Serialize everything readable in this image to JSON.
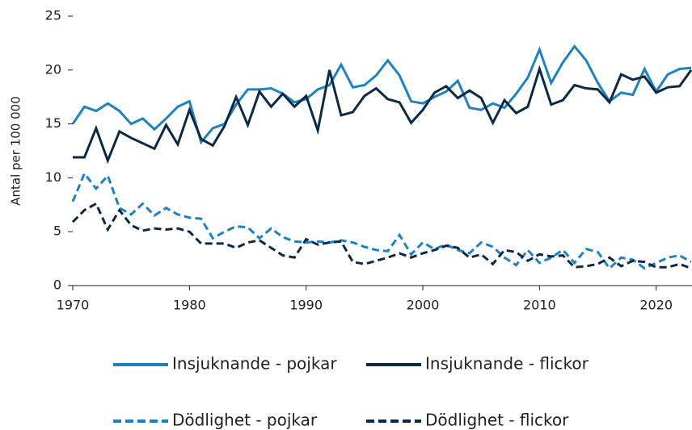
{
  "chart_data": {
    "type": "line",
    "y_label": "Antal per 100 000",
    "x": [
      1970,
      1971,
      1972,
      1973,
      1974,
      1975,
      1976,
      1977,
      1978,
      1979,
      1980,
      1981,
      1982,
      1983,
      1984,
      1985,
      1986,
      1987,
      1988,
      1989,
      1990,
      1991,
      1992,
      1993,
      1994,
      1995,
      1996,
      1997,
      1998,
      1999,
      2000,
      2001,
      2002,
      2003,
      2004,
      2005,
      2006,
      2007,
      2008,
      2009,
      2010,
      2011,
      2012,
      2013,
      2014,
      2015,
      2016,
      2017,
      2018,
      2019,
      2020,
      2021,
      2022,
      2023
    ],
    "xlim": [
      1970,
      2023
    ],
    "xticks": [
      1970,
      1980,
      1990,
      2000,
      2010,
      2020
    ],
    "ylim": [
      0,
      25
    ],
    "yticks": [
      0,
      5,
      10,
      15,
      20,
      25
    ],
    "series": [
      {
        "name": "Insjuknande - pojkar",
        "color": "#1f82c0",
        "style": "solid",
        "values": [
          15.0,
          16.6,
          16.2,
          16.9,
          16.2,
          15.0,
          15.5,
          14.5,
          15.5,
          16.6,
          17.1,
          13.3,
          14.6,
          15.0,
          16.8,
          18.2,
          18.2,
          18.3,
          17.8,
          17.0,
          17.3,
          18.2,
          18.6,
          20.5,
          18.4,
          18.6,
          19.5,
          20.9,
          19.5,
          17.1,
          16.9,
          17.5,
          18.0,
          19.0,
          16.5,
          16.3,
          16.9,
          16.5,
          17.8,
          19.3,
          21.9,
          18.8,
          20.7,
          22.2,
          20.9,
          18.8,
          17.1,
          17.9,
          17.7,
          20.1,
          18.0,
          19.6,
          20.1,
          20.2
        ]
      },
      {
        "name": "Insjuknande - flickor",
        "color": "#0c2a45",
        "style": "solid",
        "values": [
          11.9,
          11.9,
          14.6,
          11.6,
          14.3,
          13.7,
          13.2,
          12.7,
          14.9,
          13.1,
          16.3,
          13.6,
          13.0,
          14.8,
          17.5,
          14.9,
          18.0,
          16.6,
          17.8,
          16.6,
          17.6,
          14.4,
          20.0,
          15.8,
          16.1,
          17.6,
          18.3,
          17.3,
          17.0,
          15.1,
          16.3,
          17.9,
          18.5,
          17.4,
          18.1,
          17.4,
          15.1,
          17.2,
          16.0,
          16.6,
          20.1,
          16.8,
          17.2,
          18.6,
          18.3,
          18.2,
          17.0,
          19.6,
          19.1,
          19.4,
          17.9,
          18.4,
          18.5,
          20.0
        ]
      },
      {
        "name": "Dödlighet - pojkar",
        "color": "#1f82c0",
        "style": "dashed",
        "values": [
          7.8,
          10.4,
          9.0,
          10.2,
          7.2,
          6.6,
          7.6,
          6.5,
          7.2,
          6.6,
          6.3,
          6.2,
          4.4,
          5.0,
          5.5,
          5.4,
          4.4,
          5.3,
          4.5,
          4.1,
          4.0,
          4.1,
          4.0,
          4.2,
          4.0,
          3.6,
          3.3,
          3.2,
          4.7,
          2.9,
          4.0,
          3.4,
          3.8,
          3.3,
          3.0,
          4.0,
          3.6,
          2.6,
          1.9,
          3.3,
          2.1,
          2.6,
          3.3,
          2.1,
          3.4,
          3.1,
          1.6,
          2.6,
          2.4,
          1.6,
          2.1,
          2.6,
          2.8,
          2.2
        ]
      },
      {
        "name": "Dödlighet - flickor",
        "color": "#0c2a45",
        "style": "dashed",
        "values": [
          5.9,
          7.0,
          7.6,
          5.2,
          7.0,
          5.6,
          5.1,
          5.3,
          5.2,
          5.3,
          5.0,
          3.9,
          3.9,
          3.9,
          3.5,
          4.0,
          4.2,
          3.5,
          2.8,
          2.6,
          4.3,
          3.8,
          4.0,
          4.1,
          2.2,
          2.0,
          2.3,
          2.6,
          3.0,
          2.6,
          3.0,
          3.3,
          3.7,
          3.5,
          2.6,
          2.9,
          2.0,
          3.3,
          3.1,
          2.3,
          2.9,
          2.7,
          2.8,
          1.7,
          1.8,
          2.0,
          2.6,
          1.8,
          2.3,
          2.2,
          1.7,
          1.7,
          2.0,
          1.6
        ]
      }
    ]
  }
}
